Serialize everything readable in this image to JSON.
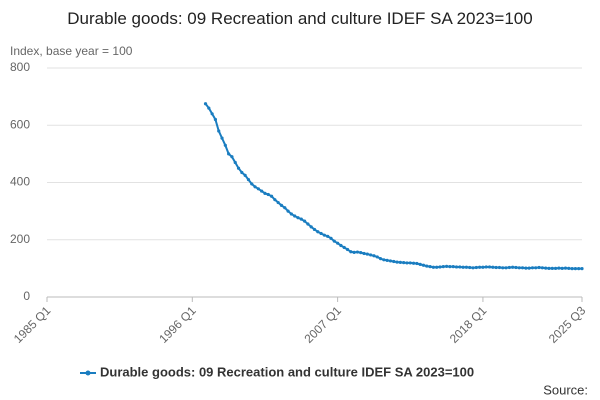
{
  "chart_data": {
    "type": "line",
    "title": "Durable goods: 09 Recreation and culture IDEF SA 2023=100",
    "y_label": "Index, base year = 100",
    "source": "Source:",
    "x": [
      "1997 Q1",
      "1997 Q2",
      "1997 Q3",
      "1997 Q4",
      "1998 Q1",
      "1998 Q2",
      "1998 Q3",
      "1998 Q4",
      "1999 Q1",
      "1999 Q2",
      "1999 Q3",
      "1999 Q4",
      "2000 Q1",
      "2000 Q2",
      "2000 Q3",
      "2000 Q4",
      "2001 Q1",
      "2001 Q2",
      "2001 Q3",
      "2001 Q4",
      "2002 Q1",
      "2002 Q2",
      "2002 Q3",
      "2002 Q4",
      "2003 Q1",
      "2003 Q2",
      "2003 Q3",
      "2003 Q4",
      "2004 Q1",
      "2004 Q2",
      "2004 Q3",
      "2004 Q4",
      "2005 Q1",
      "2005 Q2",
      "2005 Q3",
      "2005 Q4",
      "2006 Q1",
      "2006 Q2",
      "2006 Q3",
      "2006 Q4",
      "2007 Q1",
      "2007 Q2",
      "2007 Q3",
      "2007 Q4",
      "2008 Q1",
      "2008 Q2",
      "2008 Q3",
      "2008 Q4",
      "2009 Q1",
      "2009 Q2",
      "2009 Q3",
      "2009 Q4",
      "2010 Q1",
      "2010 Q2",
      "2010 Q3",
      "2010 Q4",
      "2011 Q1",
      "2011 Q2",
      "2011 Q3",
      "2011 Q4",
      "2012 Q1",
      "2012 Q2",
      "2012 Q3",
      "2012 Q4",
      "2013 Q1",
      "2013 Q2",
      "2013 Q3",
      "2013 Q4",
      "2014 Q1",
      "2014 Q2",
      "2014 Q3",
      "2014 Q4",
      "2015 Q1",
      "2015 Q2",
      "2015 Q3",
      "2015 Q4",
      "2016 Q1",
      "2016 Q2",
      "2016 Q3",
      "2016 Q4",
      "2017 Q1",
      "2017 Q2",
      "2017 Q3",
      "2017 Q4",
      "2018 Q1",
      "2018 Q2",
      "2018 Q3",
      "2018 Q4",
      "2019 Q1",
      "2019 Q2",
      "2019 Q3",
      "2019 Q4",
      "2020 Q1",
      "2020 Q2",
      "2020 Q3",
      "2020 Q4",
      "2021 Q1",
      "2021 Q2",
      "2021 Q3",
      "2021 Q4",
      "2022 Q1",
      "2022 Q2",
      "2022 Q3",
      "2022 Q4",
      "2023 Q1",
      "2023 Q2",
      "2023 Q3",
      "2023 Q4",
      "2024 Q1",
      "2024 Q2",
      "2024 Q3",
      "2024 Q4",
      "2025 Q1",
      "2025 Q2",
      "2025 Q3"
    ],
    "series": [
      {
        "name": "Durable goods: 09 Recreation and culture IDEF SA 2023=100",
        "color": "#1a7dc0",
        "values": [
          675,
          660,
          640,
          620,
          580,
          555,
          530,
          500,
          490,
          470,
          450,
          435,
          425,
          410,
          395,
          385,
          378,
          370,
          362,
          358,
          352,
          340,
          330,
          320,
          312,
          300,
          290,
          283,
          277,
          272,
          265,
          255,
          245,
          236,
          228,
          222,
          216,
          212,
          205,
          195,
          188,
          180,
          173,
          166,
          158,
          156,
          157,
          155,
          152,
          150,
          147,
          144,
          140,
          134,
          130,
          128,
          126,
          124,
          122,
          121,
          120,
          119,
          119,
          118,
          117,
          114,
          111,
          108,
          106,
          104,
          104,
          105,
          106,
          107,
          106,
          106,
          105,
          105,
          104,
          104,
          103,
          102,
          103,
          104,
          104,
          105,
          105,
          104,
          103,
          103,
          102,
          102,
          103,
          104,
          103,
          102,
          102,
          101,
          101,
          102,
          102,
          103,
          102,
          101,
          100,
          100,
          100,
          101,
          100,
          101,
          100,
          99,
          99,
          99,
          99
        ]
      }
    ],
    "xlim": [
      "1985 Q1",
      "2025 Q3"
    ],
    "xticks": [
      "1985 Q1",
      "1996 Q1",
      "2007 Q1",
      "2018 Q1",
      "2025 Q3"
    ],
    "ylim": [
      0,
      800
    ],
    "yticks": [
      0,
      200,
      400,
      600,
      800
    ],
    "grid": true
  }
}
